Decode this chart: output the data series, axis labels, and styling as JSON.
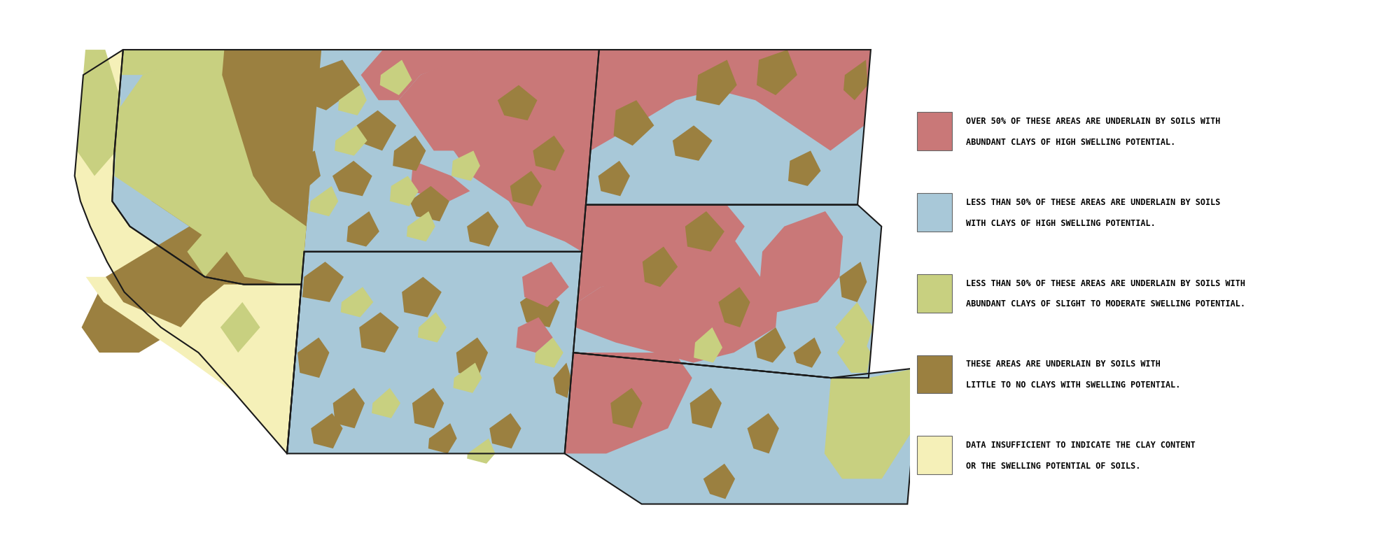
{
  "colors": {
    "high_swelling_over50": "#C97878",
    "high_swelling_under50": "#A8C8D8",
    "slight_moderate_under50": "#C8D080",
    "no_clay": "#9B8040",
    "insufficient_data": "#F5F0B8",
    "state_border": "#1a1a1a",
    "background": "#ffffff"
  },
  "legend": [
    {
      "color": "#C97878",
      "lines": [
        "OVER 50% OF THESE AREAS ARE UNDERLAIN BY SOILS WITH",
        "ABUNDANT CLAYS OF HIGH SWELLING POTENTIAL."
      ]
    },
    {
      "color": "#A8C8D8",
      "lines": [
        "LESS THAN 50% OF THESE AREAS ARE UNDERLAIN BY SOILS",
        "WITH CLAYS OF HIGH SWELLING POTENTIAL."
      ]
    },
    {
      "color": "#C8D080",
      "lines": [
        "LESS THAN 50% OF THESE AREAS ARE UNDERLAIN BY SOILS WITH",
        "ABUNDANT CLAYS OF SLIGHT TO MODERATE SWELLING POTENTIAL."
      ]
    },
    {
      "color": "#9B8040",
      "lines": [
        "THESE AREAS ARE UNDERLAIN BY SOILS WITH",
        "LITTLE TO NO CLAYS WITH SWELLING POTENTIAL."
      ]
    },
    {
      "color": "#F5F0B8",
      "lines": [
        "DATA INSUFFICIENT TO INDICATE THE CLAY CONTENT",
        "OR THE SWELLING POTENTIAL OF SOILS."
      ]
    }
  ],
  "legend_fontsize": 8.5
}
